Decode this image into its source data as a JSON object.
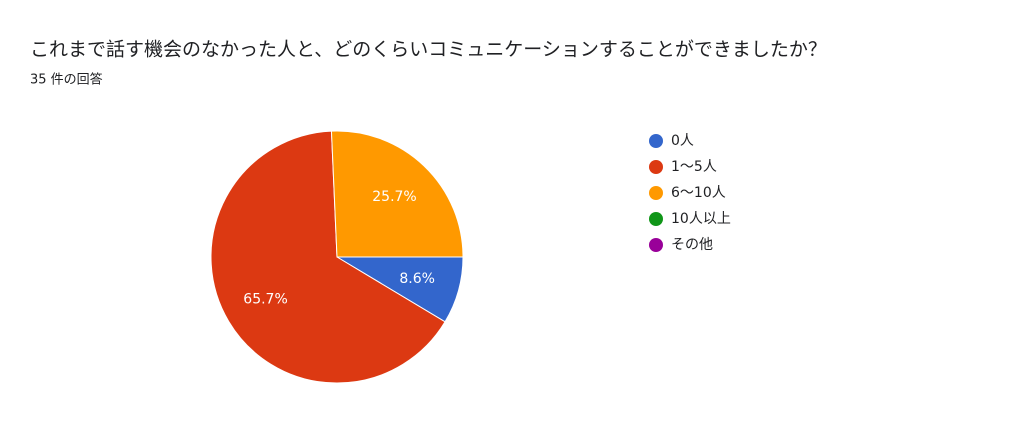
{
  "chart_data": {
    "type": "pie",
    "title": "これまで話す機会のなかった人と、どのくらいコミュニケーションすることができましたか？",
    "subtitle": "35 件の回答",
    "categories": [
      "0人",
      "1〜5人",
      "6〜10人",
      "10人以上",
      "その他"
    ],
    "values": [
      8.6,
      65.7,
      25.7,
      0,
      0
    ],
    "value_labels": [
      "8.6%",
      "65.7%",
      "25.7%",
      null,
      null
    ],
    "colors": [
      "#3366cc",
      "#dc3912",
      "#ff9900",
      "#109618",
      "#990099"
    ],
    "legend": "right"
  }
}
